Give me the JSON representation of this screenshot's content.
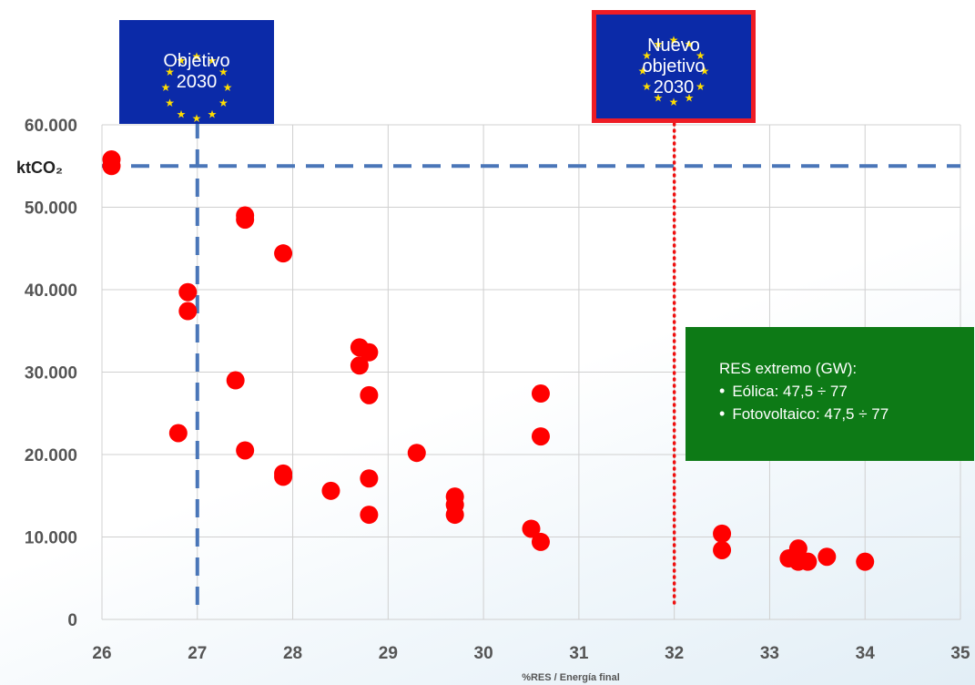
{
  "chart_data": {
    "type": "scatter",
    "title": "",
    "xlabel": "%RES / Energía final",
    "ylabel": "",
    "xlim": [
      26,
      35
    ],
    "ylim": [
      0,
      60000
    ],
    "x_ticks": [
      26,
      27,
      28,
      29,
      30,
      31,
      32,
      33,
      34,
      35
    ],
    "y_ticks": [
      0,
      10000,
      20000,
      30000,
      40000,
      50000,
      60000
    ],
    "y_tick_labels": [
      "0",
      "10.000",
      "20.000",
      "30.000",
      "40.000",
      "50.000",
      "60.000"
    ],
    "grid": true,
    "marker_color": "#ff0000",
    "series": [
      {
        "points": [
          [
            26.1,
            55800
          ],
          [
            26.1,
            55000
          ],
          [
            26.8,
            22600
          ],
          [
            26.9,
            39700
          ],
          [
            26.9,
            37400
          ],
          [
            27.4,
            29000
          ],
          [
            27.5,
            49000
          ],
          [
            27.5,
            48500
          ],
          [
            27.5,
            20500
          ],
          [
            27.9,
            44400
          ],
          [
            27.9,
            17700
          ],
          [
            27.9,
            17300
          ],
          [
            28.4,
            15600
          ],
          [
            28.7,
            33000
          ],
          [
            28.7,
            30800
          ],
          [
            28.8,
            32400
          ],
          [
            28.8,
            27200
          ],
          [
            28.8,
            17100
          ],
          [
            28.8,
            12700
          ],
          [
            29.3,
            20200
          ],
          [
            29.7,
            14900
          ],
          [
            29.7,
            13900
          ],
          [
            29.7,
            12700
          ],
          [
            30.5,
            11000
          ],
          [
            30.6,
            27400
          ],
          [
            30.6,
            22200
          ],
          [
            30.6,
            9400
          ],
          [
            32.5,
            10400
          ],
          [
            32.5,
            8400
          ],
          [
            33.2,
            7400
          ],
          [
            33.3,
            8600
          ],
          [
            33.3,
            7000
          ],
          [
            33.4,
            7000
          ],
          [
            33.6,
            7600
          ],
          [
            34.0,
            7000
          ]
        ]
      }
    ],
    "reference_lines": [
      {
        "axis": "y",
        "value": 55000,
        "label": "ktCO₂",
        "style": "dashed",
        "color": "#4a76b8"
      },
      {
        "axis": "x",
        "value": 27,
        "style": "dashed",
        "color": "#4a76b8"
      },
      {
        "axis": "x",
        "value": 32,
        "style": "dotted",
        "color": "#ee1111"
      }
    ]
  },
  "flags": {
    "objetivo_2030": {
      "line1": "Objetivo",
      "line2": "2030",
      "background": "#0b2aa8",
      "star_color": "#ffdd00"
    },
    "nuevo_objetivo_2030": {
      "line1": "Nuevo",
      "line2": "objetivo",
      "line3": "2030",
      "background": "#0b2aa8",
      "border_color": "#ee1c25",
      "star_color": "#ffdd00"
    }
  },
  "res_box": {
    "title": "RES extremo (GW):",
    "items": [
      "Eólica:  47,5 ÷ 77",
      "Fotovoltaico: 47,5 ÷ 77"
    ],
    "background": "#0d7a16"
  },
  "colors": {
    "axis_text": "#555555",
    "grid": "#d0d0d0"
  }
}
